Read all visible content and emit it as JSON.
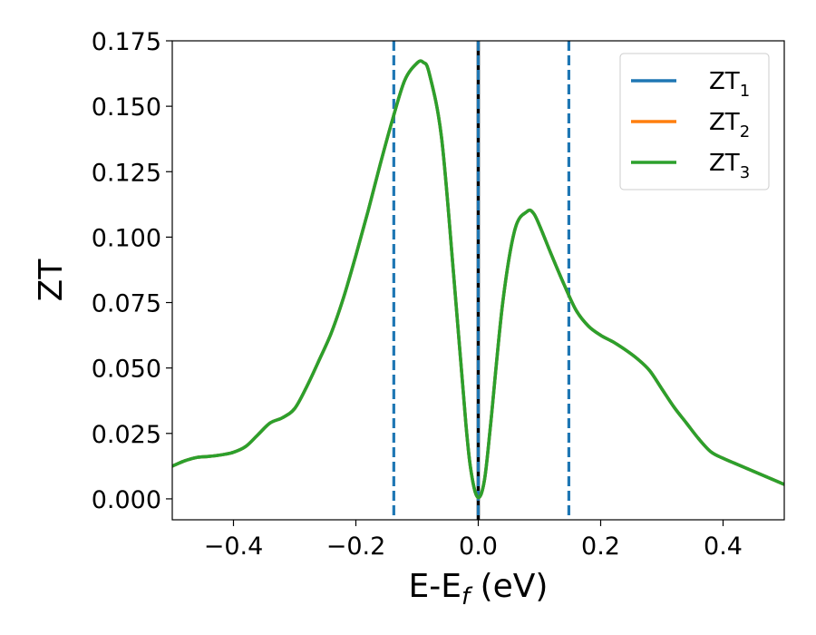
{
  "chart_data": {
    "type": "line",
    "xlabel_main": "E-E",
    "xlabel_sub": "f",
    "xlabel_unit": " (eV)",
    "ylabel": "ZT",
    "xlim": [
      -0.5,
      0.5
    ],
    "ylim": [
      -0.008,
      0.175
    ],
    "x_ticks": [
      -0.4,
      -0.2,
      0.0,
      0.2,
      0.4
    ],
    "x_tick_labels": [
      "−0.4",
      "−0.2",
      "0.0",
      "0.2",
      "0.4"
    ],
    "y_ticks": [
      0.0,
      0.025,
      0.05,
      0.075,
      0.1,
      0.125,
      0.15,
      0.175
    ],
    "y_tick_labels": [
      "0.000",
      "0.025",
      "0.050",
      "0.075",
      "0.100",
      "0.125",
      "0.150",
      "0.175"
    ],
    "grid": false,
    "legend_position": "top-right",
    "x": [
      -0.5,
      -0.48,
      -0.46,
      -0.44,
      -0.42,
      -0.4,
      -0.38,
      -0.36,
      -0.34,
      -0.32,
      -0.3,
      -0.28,
      -0.26,
      -0.24,
      -0.22,
      -0.2,
      -0.18,
      -0.16,
      -0.14,
      -0.12,
      -0.1,
      -0.09,
      -0.08,
      -0.06,
      -0.04,
      -0.02,
      -0.01,
      0.0,
      0.01,
      0.02,
      0.04,
      0.06,
      0.08,
      0.09,
      0.1,
      0.12,
      0.14,
      0.16,
      0.18,
      0.2,
      0.22,
      0.24,
      0.26,
      0.28,
      0.3,
      0.32,
      0.34,
      0.36,
      0.38,
      0.4,
      0.42,
      0.44,
      0.46,
      0.48,
      0.5
    ],
    "series": [
      {
        "name": "ZT1",
        "label_main": "ZT",
        "label_sub": "1",
        "color": "#1f77b4",
        "values": [
          0.0125,
          0.0145,
          0.0158,
          0.0162,
          0.0168,
          0.0178,
          0.02,
          0.0245,
          0.029,
          0.031,
          0.0345,
          0.043,
          0.053,
          0.0635,
          0.077,
          0.093,
          0.11,
          0.128,
          0.145,
          0.16,
          0.1665,
          0.1668,
          0.1625,
          0.138,
          0.085,
          0.028,
          0.008,
          0.0005,
          0.007,
          0.028,
          0.075,
          0.103,
          0.1098,
          0.1092,
          0.1045,
          0.093,
          0.082,
          0.072,
          0.066,
          0.0625,
          0.06,
          0.057,
          0.0535,
          0.049,
          0.042,
          0.035,
          0.029,
          0.023,
          0.018,
          0.0155,
          0.0135,
          0.0115,
          0.0095,
          0.0075,
          0.0055
        ]
      },
      {
        "name": "ZT2",
        "label_main": "ZT",
        "label_sub": "2",
        "color": "#ff7f0e",
        "values": [
          0.0125,
          0.0145,
          0.0158,
          0.0162,
          0.0168,
          0.0178,
          0.02,
          0.0245,
          0.029,
          0.031,
          0.0345,
          0.043,
          0.053,
          0.0635,
          0.077,
          0.093,
          0.11,
          0.128,
          0.145,
          0.16,
          0.1665,
          0.1668,
          0.1625,
          0.138,
          0.085,
          0.028,
          0.008,
          0.0005,
          0.007,
          0.028,
          0.075,
          0.103,
          0.1098,
          0.1092,
          0.1045,
          0.093,
          0.082,
          0.072,
          0.066,
          0.0625,
          0.06,
          0.057,
          0.0535,
          0.049,
          0.042,
          0.035,
          0.029,
          0.023,
          0.018,
          0.0155,
          0.0135,
          0.0115,
          0.0095,
          0.0075,
          0.0055
        ]
      },
      {
        "name": "ZT3",
        "label_main": "ZT",
        "label_sub": "3",
        "color": "#2ca02c",
        "values": [
          0.0125,
          0.0145,
          0.0158,
          0.0162,
          0.0168,
          0.0178,
          0.02,
          0.0245,
          0.029,
          0.031,
          0.0345,
          0.043,
          0.053,
          0.0635,
          0.077,
          0.093,
          0.11,
          0.128,
          0.145,
          0.16,
          0.1665,
          0.1668,
          0.1625,
          0.138,
          0.085,
          0.028,
          0.008,
          0.0005,
          0.007,
          0.028,
          0.075,
          0.103,
          0.1098,
          0.1092,
          0.1045,
          0.093,
          0.082,
          0.072,
          0.066,
          0.0625,
          0.06,
          0.057,
          0.0535,
          0.049,
          0.042,
          0.035,
          0.029,
          0.023,
          0.018,
          0.0155,
          0.0135,
          0.0115,
          0.0095,
          0.0075,
          0.0055
        ]
      }
    ],
    "vlines": [
      {
        "x": -0.138,
        "style": "dashed",
        "color": "#1f77b4"
      },
      {
        "x": 0.0,
        "style": "solid",
        "color": "#000000"
      },
      {
        "x": 0.0,
        "style": "dashed",
        "color": "#1f77b4"
      },
      {
        "x": 0.148,
        "style": "dashed",
        "color": "#1f77b4"
      }
    ]
  }
}
